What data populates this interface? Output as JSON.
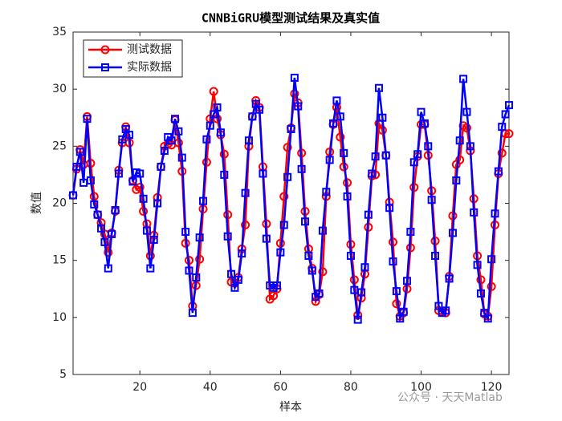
{
  "chart_data": {
    "type": "line",
    "title": "CNNBiGRU模型测试结果及真实值",
    "xlabel": "样本",
    "ylabel": "数值",
    "watermark": "公众号 · 天天Matlab",
    "legend": "top-left",
    "xlim": [
      1,
      125
    ],
    "xticks": [
      20,
      40,
      60,
      80,
      100,
      120
    ],
    "ylim": [
      5,
      35
    ],
    "yticks": [
      5,
      10,
      15,
      20,
      25,
      30,
      35
    ],
    "x": [
      1,
      2,
      3,
      4,
      5,
      6,
      7,
      8,
      9,
      10,
      11,
      12,
      13,
      14,
      15,
      16,
      17,
      18,
      19,
      20,
      21,
      22,
      23,
      24,
      25,
      26,
      27,
      28,
      29,
      30,
      31,
      32,
      33,
      34,
      35,
      36,
      37,
      38,
      39,
      40,
      41,
      42,
      43,
      44,
      45,
      46,
      47,
      48,
      49,
      50,
      51,
      52,
      53,
      54,
      55,
      56,
      57,
      58,
      59,
      60,
      61,
      62,
      63,
      64,
      65,
      66,
      67,
      68,
      69,
      70,
      71,
      72,
      73,
      74,
      75,
      76,
      77,
      78,
      79,
      80,
      81,
      82,
      83,
      84,
      85,
      86,
      87,
      88,
      89,
      90,
      91,
      92,
      93,
      94,
      95,
      96,
      97,
      98,
      99,
      100,
      101,
      102,
      103,
      104,
      105,
      106,
      107,
      108,
      109,
      110,
      111,
      112,
      113,
      114,
      115,
      116,
      117,
      118,
      119,
      120,
      121,
      122,
      123,
      124,
      125
    ],
    "series": [
      {
        "name": "测试数据",
        "color": "#ff0000",
        "marker": "circle",
        "values": [
          20.7,
          23,
          24.7,
          23.4,
          27.6,
          23.5,
          20.6,
          19,
          18.3,
          17.3,
          15.7,
          17.4,
          19.3,
          22.9,
          25.3,
          26.7,
          25.3,
          22,
          21.2,
          21.4,
          19.3,
          18.2,
          15.4,
          17.2,
          20.5,
          23.2,
          25,
          25.2,
          25.1,
          27.3,
          25.3,
          22.8,
          16.5,
          15,
          11,
          12.8,
          15.1,
          19.5,
          23.6,
          27.4,
          29.8,
          27.4,
          26,
          24.3,
          19,
          13.1,
          13,
          13.5,
          16,
          18.1,
          25,
          27.6,
          29,
          28.4,
          23.2,
          18.2,
          11.6,
          11.9,
          12.5,
          16.5,
          20.6,
          24.9,
          26.6,
          29.6,
          28.8,
          24.4,
          19.3,
          16,
          14.3,
          11.4,
          12,
          14,
          20.6,
          24.5,
          26.9,
          28.4,
          25.8,
          23.2,
          21.8,
          16.4,
          13.3,
          10.2,
          11.7,
          13.8,
          17.9,
          22.4,
          22.5,
          27,
          26.4,
          24.2,
          20.1,
          16.6,
          11.2,
          10.1,
          10.4,
          12.5,
          16.1,
          21.4,
          24.1,
          26.9,
          26.9,
          24.2,
          21.1,
          16.7,
          10.6,
          10.5,
          10.4,
          13.6,
          18.9,
          23.4,
          23.8,
          26.8,
          26.6,
          24.6,
          20.4,
          15.4,
          13.3,
          10.3,
          10.1,
          12.7,
          18.1,
          22.6,
          24.4,
          26.1,
          26.1
        ]
      },
      {
        "name": "实际数据",
        "color": "#0000ff",
        "marker": "square",
        "values": [
          20.7,
          23.2,
          24.5,
          21.8,
          27.4,
          22,
          19.9,
          19,
          17.8,
          16.6,
          14.3,
          17.3,
          19.4,
          22.6,
          25.6,
          26.5,
          26,
          21.9,
          22.7,
          22.6,
          20.4,
          17.6,
          14.3,
          16.8,
          20,
          23.2,
          24.6,
          25.8,
          25.5,
          27.4,
          26.3,
          24,
          17.5,
          14.1,
          10.4,
          13.5,
          17,
          20.2,
          25.6,
          26.8,
          27.8,
          28.4,
          26.2,
          22.5,
          17.1,
          13.8,
          12.6,
          13.3,
          15.6,
          20.9,
          25.5,
          27.6,
          28.7,
          28.2,
          22.6,
          16.9,
          12.8,
          12.6,
          12.8,
          15.7,
          18.1,
          22.3,
          26.5,
          31,
          28.5,
          23,
          18.4,
          15.4,
          14.1,
          11.8,
          12.1,
          17.6,
          21,
          23.8,
          27,
          29,
          27.6,
          24.4,
          20.6,
          15.4,
          12.4,
          9.8,
          12.2,
          14.4,
          19,
          22.6,
          24.1,
          30.1,
          27.5,
          24.2,
          19.6,
          14.9,
          12.3,
          9.9,
          10.5,
          13.2,
          17.5,
          23.6,
          24.3,
          28,
          27,
          25,
          20.3,
          15.4,
          11,
          10.4,
          10.6,
          13.4,
          17.4,
          22,
          25.5,
          30.9,
          28,
          25,
          19.2,
          14.6,
          12.1,
          10.4,
          9.9,
          15.1,
          19.1,
          22.8,
          26.7,
          27.8,
          28.6
        ]
      }
    ]
  }
}
